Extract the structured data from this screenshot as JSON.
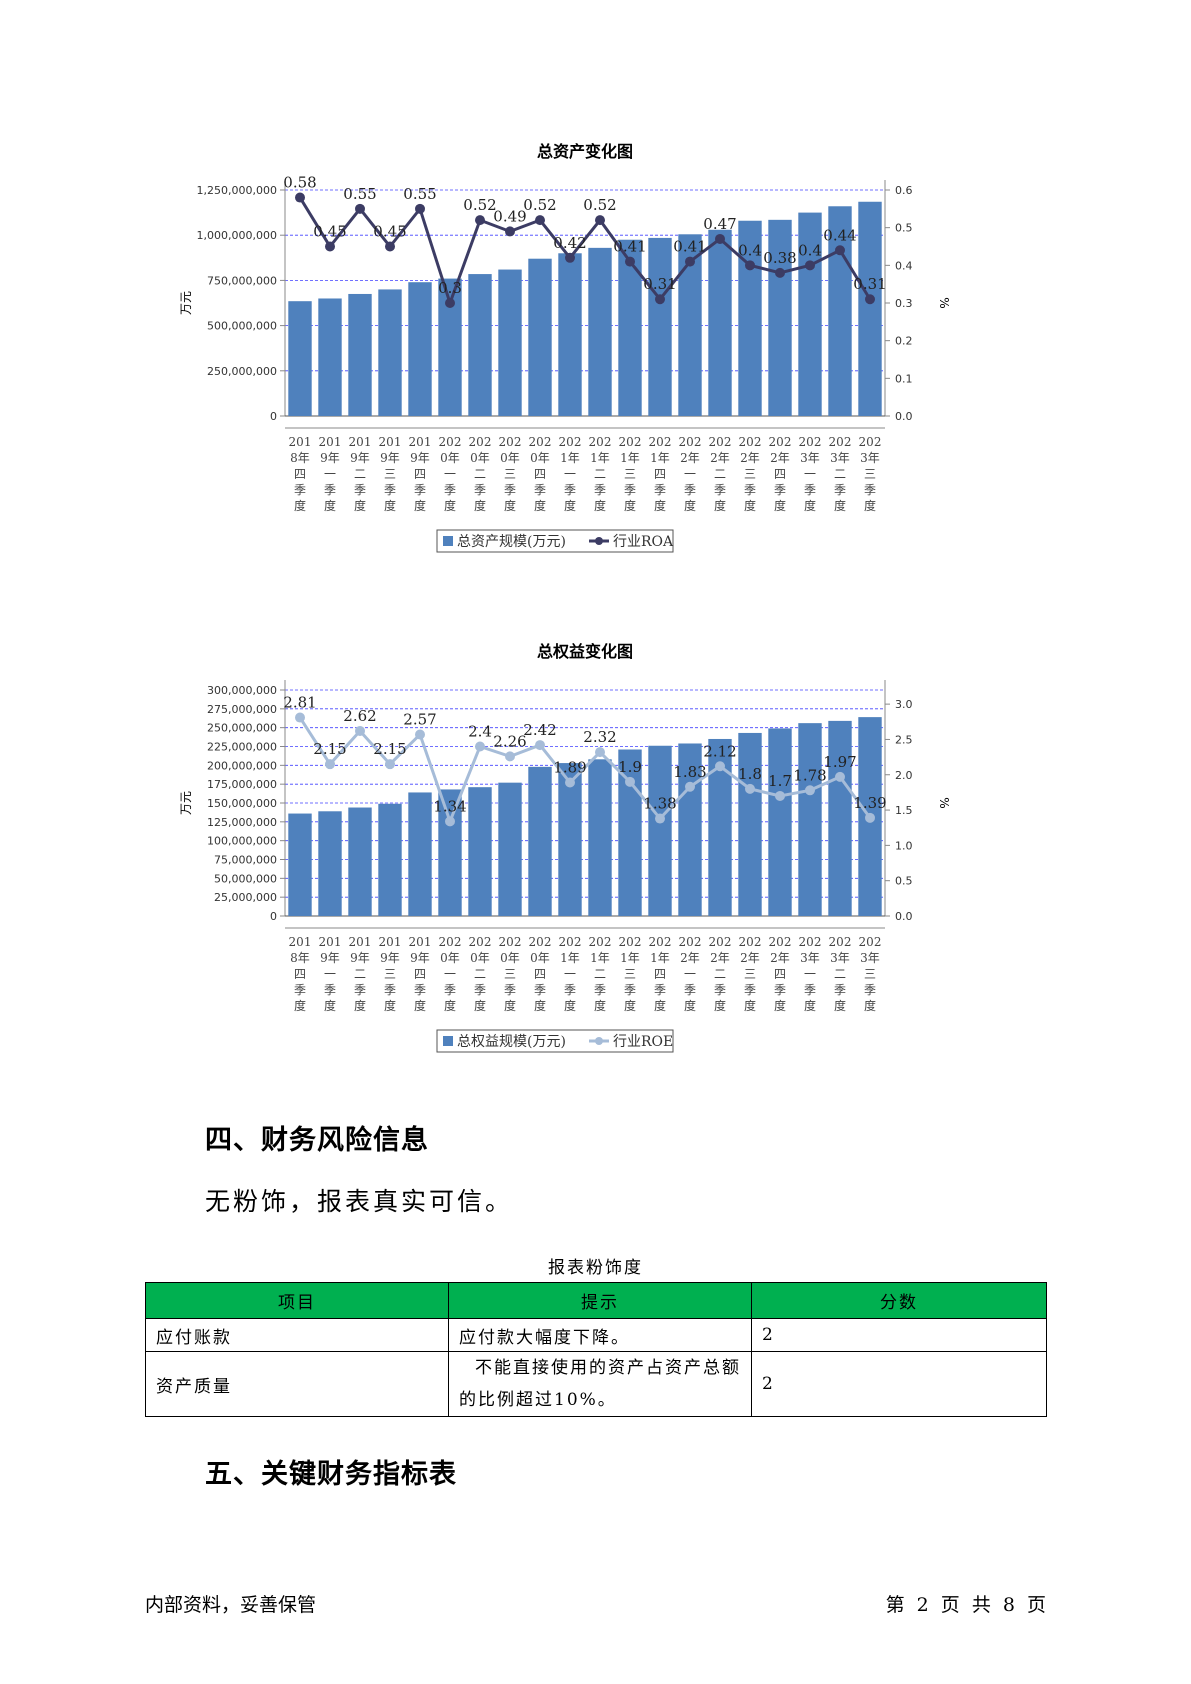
{
  "chart_data": [
    {
      "type": "bar+line",
      "title": "总资产变化图",
      "ylabel": "万元",
      "y2label": "%",
      "ylim": [
        0,
        1250000000
      ],
      "y2lim": [
        0,
        0.6
      ],
      "yticks": [
        "0",
        "250,000,000",
        "500,000,000",
        "750,000,000",
        "1,000,000,000",
        "1,250,000,000"
      ],
      "y2ticks": [
        "0.0",
        "0.1",
        "0.2",
        "0.3",
        "0.4",
        "0.5",
        "0.6"
      ],
      "y2tick_values": [
        0,
        0.1,
        0.2,
        0.3,
        0.4,
        0.5,
        0.6
      ],
      "categories": [
        [
          "201",
          "8年",
          "四",
          "季",
          "度"
        ],
        [
          "201",
          "9年",
          "一",
          "季",
          "度"
        ],
        [
          "201",
          "9年",
          "二",
          "季",
          "度"
        ],
        [
          "201",
          "9年",
          "三",
          "季",
          "度"
        ],
        [
          "201",
          "9年",
          "四",
          "季",
          "度"
        ],
        [
          "202",
          "0年",
          "一",
          "季",
          "度"
        ],
        [
          "202",
          "0年",
          "二",
          "季",
          "度"
        ],
        [
          "202",
          "0年",
          "三",
          "季",
          "度"
        ],
        [
          "202",
          "0年",
          "四",
          "季",
          "度"
        ],
        [
          "202",
          "1年",
          "一",
          "季",
          "度"
        ],
        [
          "202",
          "1年",
          "二",
          "季",
          "度"
        ],
        [
          "202",
          "1年",
          "三",
          "季",
          "度"
        ],
        [
          "202",
          "1年",
          "四",
          "季",
          "度"
        ],
        [
          "202",
          "2年",
          "一",
          "季",
          "度"
        ],
        [
          "202",
          "2年",
          "二",
          "季",
          "度"
        ],
        [
          "202",
          "2年",
          "三",
          "季",
          "度"
        ],
        [
          "202",
          "2年",
          "四",
          "季",
          "度"
        ],
        [
          "202",
          "3年",
          "一",
          "季",
          "度"
        ],
        [
          "202",
          "3年",
          "二",
          "季",
          "度"
        ],
        [
          "202",
          "3年",
          "三",
          "季",
          "度"
        ]
      ],
      "series": [
        {
          "name": "总资产规模(万元)",
          "kind": "bar",
          "color": "#4f81bd",
          "values": [
            635000000,
            650000000,
            675000000,
            700000000,
            740000000,
            760000000,
            785000000,
            810000000,
            870000000,
            900000000,
            930000000,
            975000000,
            985000000,
            1005000000,
            1030000000,
            1080000000,
            1085000000,
            1125000000,
            1160000000,
            1185000000
          ]
        },
        {
          "name": "行业ROA",
          "kind": "line",
          "color": "#3c3c64",
          "values": [
            0.58,
            0.45,
            0.55,
            0.45,
            0.55,
            0.3,
            0.52,
            0.49,
            0.52,
            0.42,
            0.52,
            0.41,
            0.31,
            0.41,
            0.47,
            0.4,
            0.38,
            0.4,
            0.44,
            0.31
          ],
          "labels": [
            "0.58",
            "0.45",
            "0.55",
            "0.45",
            "0.55",
            "0.3",
            "0.52",
            "0.49",
            "0.52",
            "0.42",
            "0.52",
            "0.41",
            "0.31",
            "0.41",
            "0.47",
            "0.4",
            "0.38",
            "0.4",
            "0.44",
            "0.31"
          ]
        }
      ],
      "legend": [
        "总资产规模(万元)",
        "行业ROA"
      ]
    },
    {
      "type": "bar+line",
      "title": "总权益变化图",
      "ylabel": "万元",
      "y2label": "%",
      "ylim": [
        0,
        300000000
      ],
      "y2lim": [
        0,
        3.2
      ],
      "yticks": [
        "0",
        "25,000,000",
        "50,000,000",
        "75,000,000",
        "100,000,000",
        "125,000,000",
        "150,000,000",
        "175,000,000",
        "200,000,000",
        "225,000,000",
        "250,000,000",
        "275,000,000",
        "300,000,000"
      ],
      "y2ticks": [
        "0.0",
        "0.5",
        "1.0",
        "1.5",
        "2.0",
        "2.5",
        "3.0"
      ],
      "y2tick_values": [
        0,
        0.5,
        1.0,
        1.5,
        2.0,
        2.5,
        3.0
      ],
      "categories": [
        [
          "201",
          "8年",
          "四",
          "季",
          "度"
        ],
        [
          "201",
          "9年",
          "一",
          "季",
          "度"
        ],
        [
          "201",
          "9年",
          "二",
          "季",
          "度"
        ],
        [
          "201",
          "9年",
          "三",
          "季",
          "度"
        ],
        [
          "201",
          "9年",
          "四",
          "季",
          "度"
        ],
        [
          "202",
          "0年",
          "一",
          "季",
          "度"
        ],
        [
          "202",
          "0年",
          "二",
          "季",
          "度"
        ],
        [
          "202",
          "0年",
          "三",
          "季",
          "度"
        ],
        [
          "202",
          "0年",
          "四",
          "季",
          "度"
        ],
        [
          "202",
          "1年",
          "一",
          "季",
          "度"
        ],
        [
          "202",
          "1年",
          "二",
          "季",
          "度"
        ],
        [
          "202",
          "1年",
          "三",
          "季",
          "度"
        ],
        [
          "202",
          "1年",
          "四",
          "季",
          "度"
        ],
        [
          "202",
          "2年",
          "一",
          "季",
          "度"
        ],
        [
          "202",
          "2年",
          "二",
          "季",
          "度"
        ],
        [
          "202",
          "2年",
          "三",
          "季",
          "度"
        ],
        [
          "202",
          "2年",
          "四",
          "季",
          "度"
        ],
        [
          "202",
          "3年",
          "一",
          "季",
          "度"
        ],
        [
          "202",
          "3年",
          "二",
          "季",
          "度"
        ],
        [
          "202",
          "3年",
          "三",
          "季",
          "度"
        ]
      ],
      "series": [
        {
          "name": "总权益规模(万元)",
          "kind": "bar",
          "color": "#4f81bd",
          "values": [
            136000000,
            139000000,
            144000000,
            149000000,
            164000000,
            168000000,
            171000000,
            177000000,
            198000000,
            203000000,
            208000000,
            221000000,
            226000000,
            229000000,
            235000000,
            243000000,
            249000000,
            256000000,
            259000000,
            264000000
          ]
        },
        {
          "name": "行业ROE",
          "kind": "line",
          "color": "#a6bcd8",
          "values": [
            2.81,
            2.15,
            2.62,
            2.15,
            2.57,
            1.34,
            2.4,
            2.26,
            2.42,
            1.89,
            2.32,
            1.9,
            1.38,
            1.83,
            2.12,
            1.8,
            1.7,
            1.78,
            1.97,
            1.39
          ],
          "labels": [
            "2.81",
            "2.15",
            "2.62",
            "2.15",
            "2.57",
            "1.34",
            "2.4",
            "2.26",
            "2.42",
            "1.89",
            "2.32",
            "1.9",
            "1.38",
            "1.83",
            "2.12",
            "1.8",
            "1.7",
            "1.78",
            "1.97",
            "1.39"
          ]
        }
      ],
      "legend": [
        "总权益规模(万元)",
        "行业ROE"
      ]
    }
  ],
  "section4": {
    "heading": "四、财务风险信息",
    "text": "无粉饰，报表真实可信。"
  },
  "table": {
    "caption": "报表粉饰度",
    "headers": [
      "项目",
      "提示",
      "分数"
    ],
    "header_color": "#00b050",
    "rows": [
      {
        "item": "应付账款",
        "hint_line1": "应付款大幅度下降。",
        "hint_line2": "",
        "score": "2"
      },
      {
        "item": "资产质量",
        "hint_line1": "不能直接使用的资产占资产总额",
        "hint_line2": "的比例超过10%。",
        "score": "2"
      }
    ]
  },
  "section5": {
    "heading": "五、关键财务指标表"
  },
  "footer": {
    "left": "内部资料，妥善保管",
    "right": "第 2 页  共 8 页"
  }
}
